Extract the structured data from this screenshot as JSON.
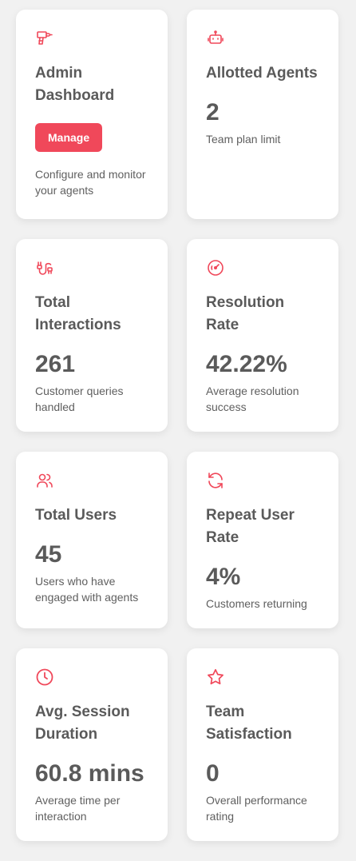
{
  "colors": {
    "accent": "#f0485a",
    "text": "#5a5a5a",
    "background": "#f1f1f1",
    "card": "#ffffff"
  },
  "cards": [
    {
      "icon": "drill-icon",
      "title": "Admin Dashboard",
      "button": "Manage",
      "desc": "Configure and monitor your agents"
    },
    {
      "icon": "robot-icon",
      "title": "Allotted Agents",
      "value": "2",
      "desc": "Team plan limit"
    },
    {
      "icon": "cable-icon",
      "title": "Total Interactions",
      "value": "261",
      "desc": "Customer queries handled"
    },
    {
      "icon": "gauge-icon",
      "title": "Resolution Rate",
      "value": "42.22%",
      "desc": "Average resolution success"
    },
    {
      "icon": "users-icon",
      "title": "Total Users",
      "value": "45",
      "desc": "Users who have engaged with agents"
    },
    {
      "icon": "refresh-icon",
      "title": "Repeat User Rate",
      "value": "4%",
      "desc": "Customers returning"
    },
    {
      "icon": "clock-icon",
      "title": "Avg. Session Duration",
      "value": "60.8 mins",
      "desc": "Average time per interaction"
    },
    {
      "icon": "star-icon",
      "title": "Team Satisfaction",
      "value": "0",
      "desc": "Overall performance rating"
    }
  ]
}
